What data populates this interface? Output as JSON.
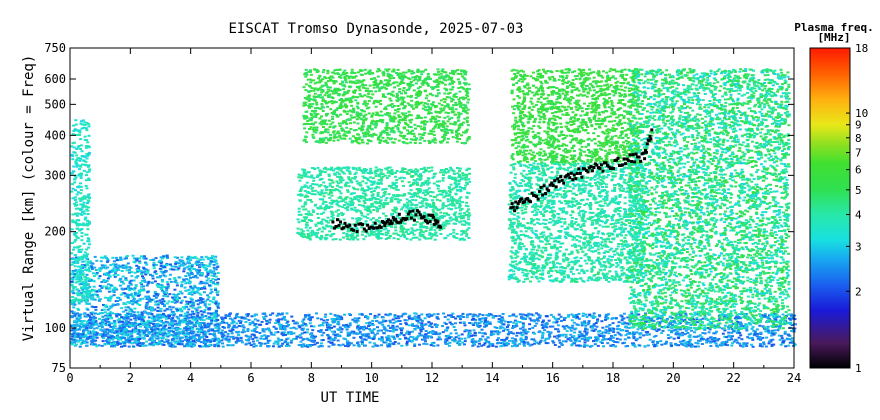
{
  "chart_data": {
    "type": "heatmap",
    "title": "EISCAT Tromso Dynasonde, 2025-07-03",
    "xlabel": "UT TIME",
    "ylabel": "Virtual Range [km] (colour = Freq)",
    "xlim": [
      0,
      24
    ],
    "ylim": [
      75,
      750
    ],
    "y_scale": "log",
    "x_ticks": [
      "0",
      "2",
      "4",
      "6",
      "8",
      "10",
      "12",
      "14",
      "16",
      "18",
      "20",
      "22",
      "24"
    ],
    "y_ticks": [
      "75",
      "100",
      "200",
      "300",
      "400",
      "500",
      "600",
      "750"
    ],
    "colorbar": {
      "title": "Plasma freq.",
      "unit": "[MHz]",
      "scale": "log",
      "range": [
        1,
        18
      ],
      "ticks": [
        "1",
        "2",
        "3",
        "4",
        "5",
        "6",
        "7",
        "8",
        "9",
        "10",
        "18"
      ],
      "colors": [
        "#000000",
        "#4a1a5e",
        "#2a2ae0",
        "#1a8cf0",
        "#20e0e0",
        "#30e890",
        "#30e030",
        "#90e020",
        "#e8e818",
        "#ff9a10",
        "#ff2a00"
      ]
    },
    "regions": [
      {
        "label": "E layer trace",
        "x": [
          0.0,
          24.0
        ],
        "y": [
          88,
          112
        ],
        "freq_mhz": [
          2.0,
          3.0
        ]
      },
      {
        "label": "Early sporadic traces",
        "x": [
          0.0,
          4.9
        ],
        "y": [
          88,
          170
        ],
        "freq_mhz": [
          2.0,
          3.5
        ]
      },
      {
        "label": "Early F trace",
        "x": [
          0.0,
          0.6
        ],
        "y": [
          120,
          450
        ],
        "freq_mhz": [
          3.0,
          4.0
        ]
      },
      {
        "label": "F2 high echoes",
        "x": [
          7.7,
          13.2
        ],
        "y": [
          380,
          650
        ],
        "freq_mhz": [
          4.5,
          6.0
        ]
      },
      {
        "label": "F1 band",
        "x": [
          7.5,
          13.2
        ],
        "y": [
          190,
          320
        ],
        "freq_mhz": [
          3.5,
          4.5
        ]
      },
      {
        "label": "Afternoon F2 green",
        "x": [
          14.6,
          18.8
        ],
        "y": [
          330,
          650
        ],
        "freq_mhz": [
          4.8,
          6.2
        ]
      },
      {
        "label": "Afternoon F2 cyan",
        "x": [
          14.5,
          19.0
        ],
        "y": [
          140,
          330
        ],
        "freq_mhz": [
          3.3,
          4.5
        ]
      },
      {
        "label": "Evening spread F",
        "x": [
          18.5,
          23.8
        ],
        "y": [
          100,
          650
        ],
        "freq_mhz": [
          3.0,
          5.5
        ]
      }
    ],
    "traces": [
      {
        "label": "F1 trace (black)",
        "freq_mhz": 4.0,
        "x": [
          8.7,
          9.2,
          9.8,
          10.3,
          10.7,
          11.1,
          11.6,
          12.0,
          12.3
        ],
        "y": [
          215,
          208,
          210,
          212,
          220,
          225,
          228,
          220,
          215
        ]
      },
      {
        "label": "F2 trace (black)",
        "freq_mhz": 4.0,
        "x": [
          14.6,
          15.0,
          15.5,
          16.0,
          16.5,
          17.0,
          17.5,
          18.0,
          18.5,
          19.0,
          19.3
        ],
        "y": [
          240,
          250,
          265,
          285,
          300,
          310,
          320,
          330,
          340,
          345,
          420
        ]
      }
    ]
  }
}
